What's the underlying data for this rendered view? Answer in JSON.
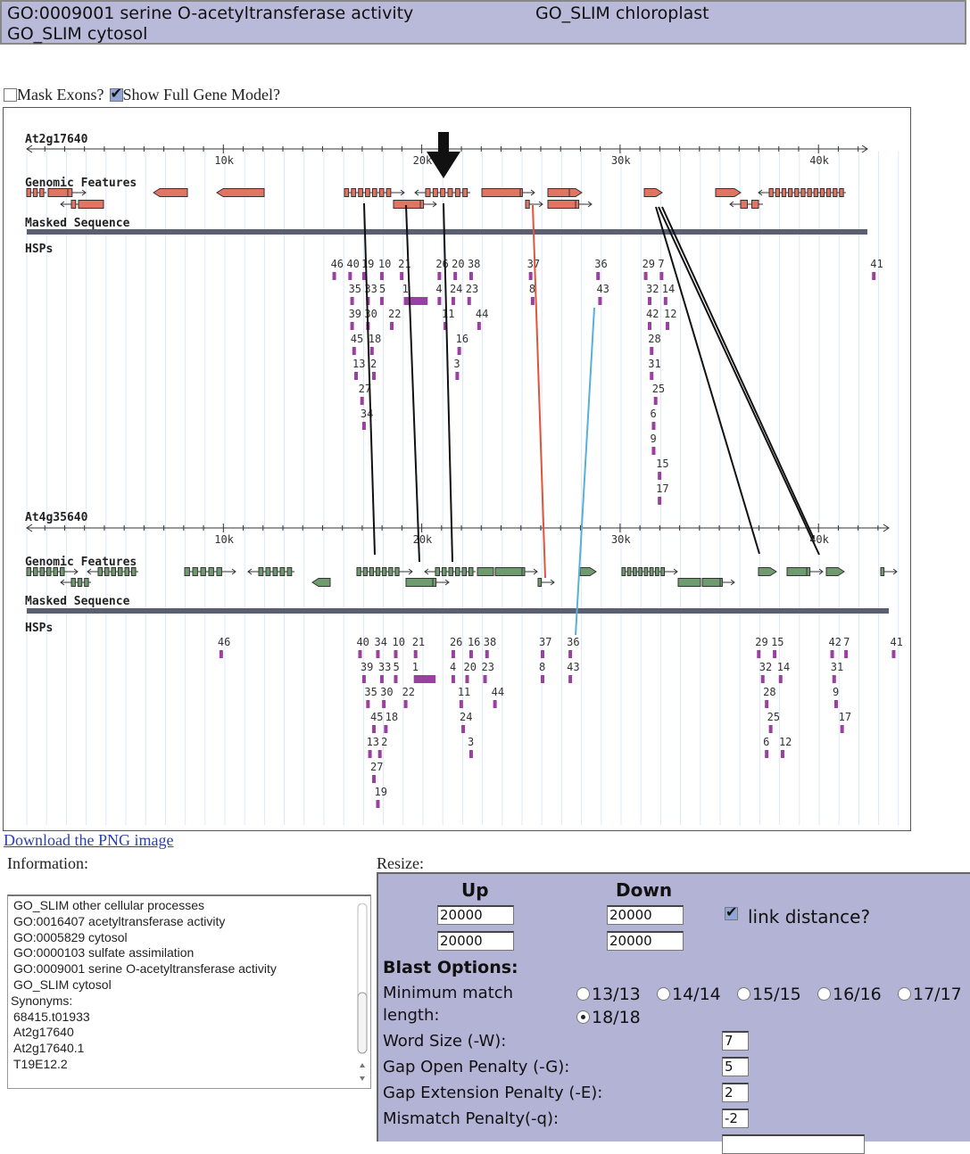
{
  "header": {
    "line1_left": "GO:0009001 serine O-acetyltransferase activity",
    "line1_right": "GO_SLIM chloroplast",
    "line2": "GO_SLIM cytosol"
  },
  "options": {
    "mask_exons": {
      "label": "Mask Exons?",
      "checked": false
    },
    "full_gene_model": {
      "label": "Show Full Gene Model?",
      "checked": true
    }
  },
  "browser": {
    "ticks": [
      "10k",
      "20k",
      "30k",
      "40k"
    ],
    "track_labels": {
      "features": "Genomic Features",
      "masked": "Masked Sequence",
      "hsps": "HSPs"
    },
    "colors": {
      "top_gene": "#e07563",
      "bottom_gene": "#6f9c6f",
      "hsp": "#9b3fa3",
      "masked": "#5a6072",
      "link_red": "#e0553a",
      "link_blue": "#58b0d8"
    },
    "top": {
      "name": "At2g17640",
      "hsps": [
        {
          "id": "46",
          "kb": 15.5,
          "tier": 0
        },
        {
          "id": "40",
          "kb": 16.3,
          "tier": 0
        },
        {
          "id": "19",
          "kb": 17.0,
          "tier": 0
        },
        {
          "id": "10",
          "kb": 17.9,
          "tier": 0
        },
        {
          "id": "21",
          "kb": 18.9,
          "tier": 0
        },
        {
          "id": "26",
          "kb": 20.8,
          "tier": 0
        },
        {
          "id": "20",
          "kb": 21.6,
          "tier": 0
        },
        {
          "id": "38",
          "kb": 22.4,
          "tier": 0
        },
        {
          "id": "37",
          "kb": 25.4,
          "tier": 0
        },
        {
          "id": "36",
          "kb": 28.8,
          "tier": 0
        },
        {
          "id": "29",
          "kb": 31.2,
          "tier": 0
        },
        {
          "id": "7",
          "kb": 32.0,
          "tier": 0
        },
        {
          "id": "41",
          "kb": 42.7,
          "tier": 0
        },
        {
          "id": "35",
          "kb": 16.4,
          "tier": 1
        },
        {
          "id": "33",
          "kb": 17.2,
          "tier": 1
        },
        {
          "id": "5",
          "kb": 17.9,
          "tier": 1
        },
        {
          "id": "1",
          "kb": 19.1,
          "tier": 1,
          "len": 1.2
        },
        {
          "id": "4",
          "kb": 20.8,
          "tier": 1
        },
        {
          "id": "24",
          "kb": 21.5,
          "tier": 1
        },
        {
          "id": "23",
          "kb": 22.3,
          "tier": 1
        },
        {
          "id": "8",
          "kb": 25.5,
          "tier": 1
        },
        {
          "id": "43",
          "kb": 28.9,
          "tier": 1
        },
        {
          "id": "32",
          "kb": 31.4,
          "tier": 1
        },
        {
          "id": "14",
          "kb": 32.2,
          "tier": 1
        },
        {
          "id": "39",
          "kb": 16.4,
          "tier": 2
        },
        {
          "id": "30",
          "kb": 17.2,
          "tier": 2
        },
        {
          "id": "22",
          "kb": 18.4,
          "tier": 2
        },
        {
          "id": "11",
          "kb": 21.1,
          "tier": 2
        },
        {
          "id": "44",
          "kb": 22.8,
          "tier": 2
        },
        {
          "id": "42",
          "kb": 31.4,
          "tier": 2
        },
        {
          "id": "12",
          "kb": 32.3,
          "tier": 2
        },
        {
          "id": "45",
          "kb": 16.5,
          "tier": 3
        },
        {
          "id": "18",
          "kb": 17.4,
          "tier": 3
        },
        {
          "id": "16",
          "kb": 21.8,
          "tier": 3
        },
        {
          "id": "28",
          "kb": 31.5,
          "tier": 3
        },
        {
          "id": "13",
          "kb": 16.6,
          "tier": 4
        },
        {
          "id": "2",
          "kb": 17.5,
          "tier": 4
        },
        {
          "id": "3",
          "kb": 21.7,
          "tier": 4
        },
        {
          "id": "31",
          "kb": 31.5,
          "tier": 4
        },
        {
          "id": "27",
          "kb": 16.9,
          "tier": 5
        },
        {
          "id": "25",
          "kb": 31.7,
          "tier": 5
        },
        {
          "id": "34",
          "kb": 17.0,
          "tier": 6
        },
        {
          "id": "6",
          "kb": 31.6,
          "tier": 6
        },
        {
          "id": "9",
          "kb": 31.6,
          "tier": 7
        },
        {
          "id": "15",
          "kb": 31.9,
          "tier": 8
        },
        {
          "id": "17",
          "kb": 31.9,
          "tier": 9
        }
      ]
    },
    "bottom": {
      "name": "At4g35640",
      "hsps": [
        {
          "id": "46",
          "kb": 9.8,
          "tier": 0
        },
        {
          "id": "40",
          "kb": 16.8,
          "tier": 0
        },
        {
          "id": "34",
          "kb": 17.7,
          "tier": 0
        },
        {
          "id": "10",
          "kb": 18.6,
          "tier": 0
        },
        {
          "id": "21",
          "kb": 19.6,
          "tier": 0
        },
        {
          "id": "26",
          "kb": 21.5,
          "tier": 0
        },
        {
          "id": "16",
          "kb": 22.4,
          "tier": 0
        },
        {
          "id": "38",
          "kb": 23.2,
          "tier": 0
        },
        {
          "id": "37",
          "kb": 26.0,
          "tier": 0
        },
        {
          "id": "36",
          "kb": 27.4,
          "tier": 0
        },
        {
          "id": "29",
          "kb": 36.9,
          "tier": 0
        },
        {
          "id": "15",
          "kb": 37.7,
          "tier": 0
        },
        {
          "id": "42",
          "kb": 40.6,
          "tier": 0
        },
        {
          "id": "7",
          "kb": 41.3,
          "tier": 0
        },
        {
          "id": "41",
          "kb": 43.7,
          "tier": 0
        },
        {
          "id": "39",
          "kb": 17.0,
          "tier": 1
        },
        {
          "id": "33",
          "kb": 17.9,
          "tier": 1
        },
        {
          "id": "5",
          "kb": 18.6,
          "tier": 1
        },
        {
          "id": "1",
          "kb": 19.6,
          "tier": 1,
          "len": 1.1
        },
        {
          "id": "4",
          "kb": 21.5,
          "tier": 1
        },
        {
          "id": "20",
          "kb": 22.2,
          "tier": 1
        },
        {
          "id": "23",
          "kb": 23.1,
          "tier": 1
        },
        {
          "id": "8",
          "kb": 26.0,
          "tier": 1
        },
        {
          "id": "43",
          "kb": 27.4,
          "tier": 1
        },
        {
          "id": "32",
          "kb": 37.1,
          "tier": 1
        },
        {
          "id": "14",
          "kb": 38.0,
          "tier": 1
        },
        {
          "id": "31",
          "kb": 40.7,
          "tier": 1
        },
        {
          "id": "35",
          "kb": 17.2,
          "tier": 2
        },
        {
          "id": "30",
          "kb": 18.0,
          "tier": 2
        },
        {
          "id": "22",
          "kb": 19.1,
          "tier": 2
        },
        {
          "id": "11",
          "kb": 21.9,
          "tier": 2
        },
        {
          "id": "44",
          "kb": 23.6,
          "tier": 2
        },
        {
          "id": "28",
          "kb": 37.3,
          "tier": 2
        },
        {
          "id": "9",
          "kb": 40.8,
          "tier": 2
        },
        {
          "id": "45",
          "kb": 17.5,
          "tier": 3
        },
        {
          "id": "18",
          "kb": 18.1,
          "tier": 3
        },
        {
          "id": "24",
          "kb": 22.0,
          "tier": 3
        },
        {
          "id": "25",
          "kb": 37.5,
          "tier": 3
        },
        {
          "id": "17",
          "kb": 41.1,
          "tier": 3
        },
        {
          "id": "13",
          "kb": 17.3,
          "tier": 4
        },
        {
          "id": "2",
          "kb": 17.8,
          "tier": 4
        },
        {
          "id": "3",
          "kb": 22.4,
          "tier": 4
        },
        {
          "id": "6",
          "kb": 37.3,
          "tier": 4
        },
        {
          "id": "12",
          "kb": 38.1,
          "tier": 4
        },
        {
          "id": "27",
          "kb": 17.5,
          "tier": 5
        },
        {
          "id": "19",
          "kb": 17.7,
          "tier": 6
        }
      ]
    }
  },
  "download_link": "Download the PNG image",
  "information": {
    "label": "Information:",
    "lines": [
      "GO_SLIM other cellular processes",
      "GO:0016407 acetyltransferase activity",
      "GO:0005829 cytosol",
      "GO:0000103 sulfate assimilation",
      "GO:0009001 serine O-acetyltransferase activity",
      "GO_SLIM cytosol",
      "Synonyms:",
      "68415.t01933",
      "At2g17640",
      "At2g17640.1",
      "T19E12.2"
    ]
  },
  "resize": {
    "label": "Resize:",
    "up": "Up",
    "down": "Down",
    "up1": "20000",
    "down1": "20000",
    "up2": "20000",
    "down2": "20000",
    "link_distance": {
      "label": "link distance?",
      "checked": true
    },
    "blast_title": "Blast Options:",
    "min_match_line1": "Minimum match",
    "min_match_line2": "length:",
    "min_match_options": [
      "13/13",
      "14/14",
      "15/15",
      "16/16",
      "17/17",
      "18/18"
    ],
    "min_match_selected": "18/18",
    "word_size": {
      "label": "Word Size (-W):",
      "value": "7"
    },
    "gap_open": {
      "label": "Gap Open Penalty (-G):",
      "value": "5"
    },
    "gap_ext": {
      "label": "Gap Extension Penalty (-E):",
      "value": "2"
    },
    "mismatch": {
      "label": "Mismatch Penalty(-q):",
      "value": "-2"
    }
  }
}
